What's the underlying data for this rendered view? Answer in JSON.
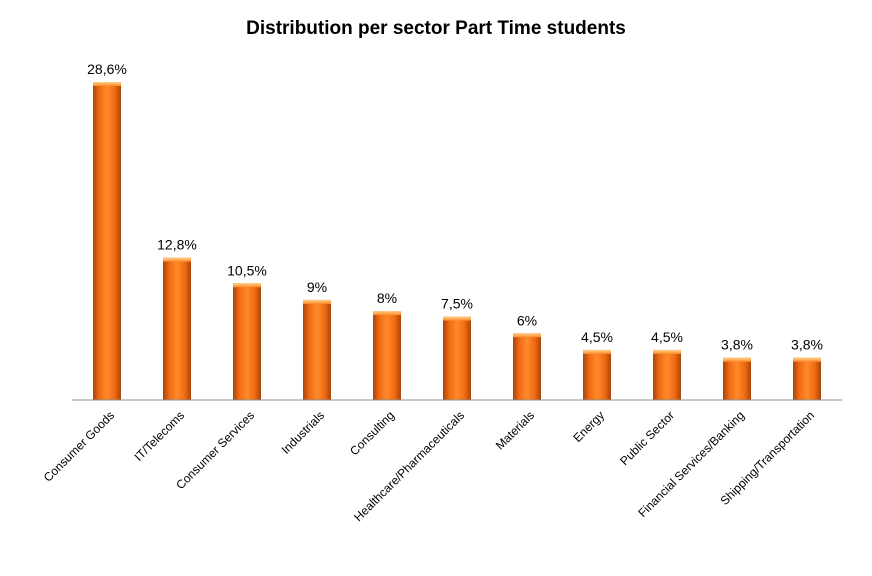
{
  "chart_data": {
    "type": "bar",
    "title": "Distribution per sector Part Time students",
    "xlabel": "",
    "ylabel": "",
    "categories": [
      "Consumer Goods",
      "IT/Telecoms",
      "Consumer Services",
      "Industrials",
      "Consulting",
      "Healthcare/Pharmaceuticals",
      "Materials",
      "Energy",
      "Public Sector",
      "Financial Services/Banking",
      "Shipping/Transportation"
    ],
    "values": [
      28.6,
      12.8,
      10.5,
      9,
      8,
      7.5,
      6,
      4.5,
      4.5,
      3.8,
      3.8
    ],
    "data_labels": [
      "28,6%",
      "12,8%",
      "10,5%",
      "9%",
      "8%",
      "7,5%",
      "6%",
      "4,5%",
      "4,5%",
      "3,8%",
      "3,8%"
    ],
    "ylim": [
      0,
      28.6
    ],
    "grid": false,
    "legend": "none",
    "bar_color": "#ff7a1a",
    "bar_color_dark": "#b04a08"
  }
}
